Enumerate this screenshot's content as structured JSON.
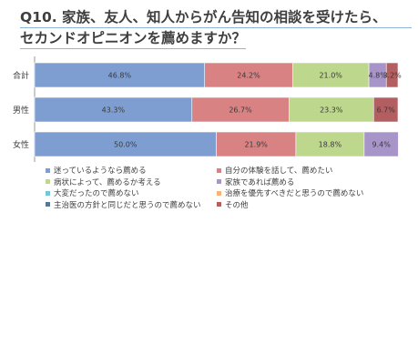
{
  "title": {
    "line1": "Q10. 家族、友人、知人からがん告知の相談を受けたら、",
    "line2": "セカンドオピニオンを薦めますか？"
  },
  "chart_data": {
    "type": "bar",
    "orientation": "horizontal",
    "stacked": "percent",
    "categories": [
      "合計",
      "男性",
      "女性"
    ],
    "series": [
      {
        "name": "迷っているようなら薦める",
        "color": "#7e9ed1",
        "values": [
          46.8,
          43.3,
          50.0
        ],
        "labels": [
          "46.8%",
          "43.3%",
          "50.0%"
        ]
      },
      {
        "name": "自分の体験を話して、薦めたい",
        "color": "#d98283",
        "values": [
          24.2,
          26.7,
          21.9
        ],
        "labels": [
          "24.2%",
          "26.7%",
          "21.9%"
        ]
      },
      {
        "name": "病状によって、薦めるか考える",
        "color": "#bdd78c",
        "values": [
          21.0,
          23.3,
          18.8
        ],
        "labels": [
          "21.0%",
          "23.3%",
          "18.8%"
        ]
      },
      {
        "name": "家族であれば薦める",
        "color": "#a794c8",
        "values": [
          4.8,
          0,
          9.4
        ],
        "labels": [
          "4.8%",
          "",
          "9.4%"
        ]
      },
      {
        "name": "大変だったので薦めない",
        "color": "#75c5dc",
        "values": [
          0,
          0,
          0
        ],
        "labels": [
          "",
          "",
          ""
        ]
      },
      {
        "name": "治療を優先すべきだと思うので薦めない",
        "color": "#f6b47a",
        "values": [
          0,
          0,
          0
        ],
        "labels": [
          "",
          "",
          ""
        ]
      },
      {
        "name": "主治医の方針と同じだと思うので薦めない",
        "color": "#5c7594",
        "values": [
          0,
          0,
          0
        ],
        "labels": [
          "",
          "",
          ""
        ]
      },
      {
        "name": "その他",
        "color": "#b35e60",
        "values": [
          3.2,
          6.7,
          0
        ],
        "labels": [
          "3.2%",
          "6.7%",
          ""
        ]
      }
    ],
    "xlim": [
      0,
      100
    ],
    "grid": false,
    "legend_position": "bottom"
  }
}
